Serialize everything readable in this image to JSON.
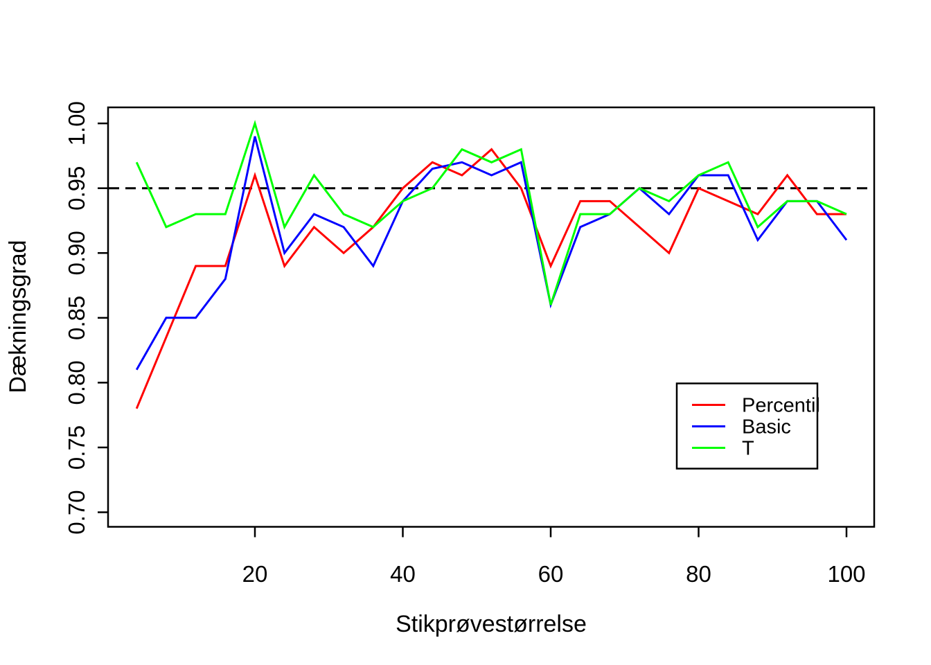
{
  "figure": {
    "background": "#ffffff",
    "text_color": "#000000"
  },
  "chart_data": {
    "type": "line",
    "title": "",
    "xlabel": "Stikprøvestørrelse",
    "ylabel": "Dækningsgrad",
    "x": [
      4,
      8,
      12,
      16,
      20,
      24,
      28,
      32,
      36,
      40,
      44,
      48,
      52,
      56,
      60,
      64,
      68,
      72,
      76,
      80,
      84,
      88,
      92,
      96,
      100
    ],
    "series": [
      {
        "name": "Percentil",
        "color": "#FF0000",
        "values": [
          0.78,
          0.835,
          0.89,
          0.89,
          0.96,
          0.89,
          0.92,
          0.9,
          0.92,
          0.95,
          0.97,
          0.96,
          0.98,
          0.95,
          0.89,
          0.94,
          0.94,
          0.92,
          0.9,
          0.95,
          0.94,
          0.93,
          0.96,
          0.93,
          0.93
        ]
      },
      {
        "name": "Basic",
        "color": "#0000FF",
        "values": [
          0.81,
          0.85,
          0.85,
          0.88,
          0.99,
          0.9,
          0.93,
          0.92,
          0.89,
          0.94,
          0.965,
          0.97,
          0.96,
          0.97,
          0.86,
          0.92,
          0.93,
          0.95,
          0.93,
          0.96,
          0.96,
          0.91,
          0.94,
          0.94,
          0.91
        ]
      },
      {
        "name": "T",
        "color": "#00FF00",
        "values": [
          0.97,
          0.92,
          0.93,
          0.93,
          1.0,
          0.92,
          0.96,
          0.93,
          0.92,
          0.94,
          0.95,
          0.98,
          0.97,
          0.98,
          0.86,
          0.93,
          0.93,
          0.95,
          0.94,
          0.96,
          0.97,
          0.92,
          0.94,
          0.94,
          0.93
        ]
      }
    ],
    "reference_line": {
      "y": 0.95,
      "style": "dashed",
      "color": "#000000"
    },
    "xlim": [
      0,
      104
    ],
    "ylim": [
      0.69,
      1.01
    ],
    "x_ticks": [
      20,
      40,
      60,
      80,
      100
    ],
    "x_tick_labels": [
      "20",
      "40",
      "60",
      "80",
      "100"
    ],
    "y_ticks": [
      0.7,
      0.75,
      0.8,
      0.85,
      0.9,
      0.95,
      1.0
    ],
    "y_tick_labels": [
      "0.70",
      "0.75",
      "0.80",
      "0.85",
      "0.90",
      "0.95",
      "1.00"
    ],
    "grid": "off",
    "legend": {
      "position": "bottom-right",
      "entries": [
        {
          "label": "Percentil",
          "color": "#FF0000"
        },
        {
          "label": "Basic",
          "color": "#0000FF"
        },
        {
          "label": "T",
          "color": "#00FF00"
        }
      ]
    }
  }
}
